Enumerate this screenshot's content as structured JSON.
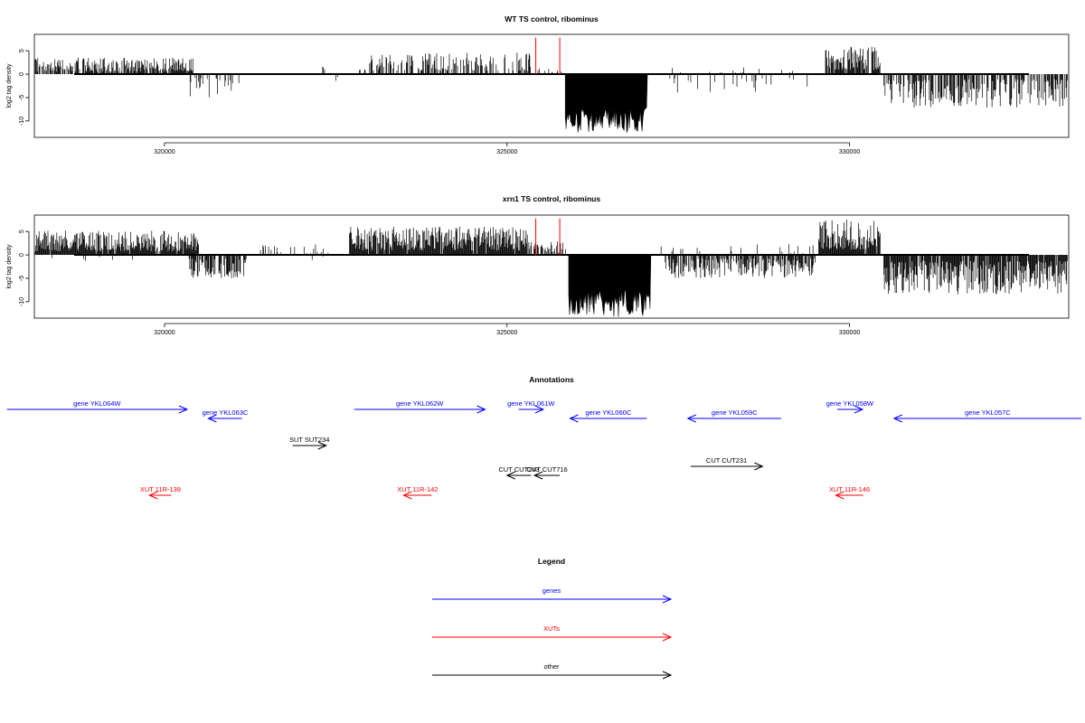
{
  "chart_data": [
    {
      "type": "bar",
      "title": "WT TS control, ribominus",
      "ylabel": "log2 tag density",
      "xlabel": "",
      "xlim": [
        318100,
        333200
      ],
      "ylim": [
        -13.5,
        8.5
      ],
      "yticks": [
        5,
        0,
        -5,
        -10
      ],
      "xticks": [
        320000,
        325000,
        330000
      ],
      "grid": false,
      "series": [
        {
          "strand": "plus",
          "segments": [
            {
              "x": [
                318100,
                320420
              ],
              "max": 3.5,
              "density": 0.75
            },
            {
              "x": [
                322300,
                322350
              ],
              "max": 1.6,
              "density": 0.5
            },
            {
              "x": [
                322800,
                325350
              ],
              "max": 4.6,
              "density": 0.45
            },
            {
              "x": [
                325350,
                325850
              ],
              "max": 1.2,
              "density": 0.2
            },
            {
              "x": [
                327200,
                329600
              ],
              "max": 1.5,
              "density": 0.06
            },
            {
              "x": [
                329650,
                330450
              ],
              "max": 6.0,
              "density": 0.85
            }
          ]
        },
        {
          "strand": "minus",
          "segments": [
            {
              "x": [
                320300,
                321100
              ],
              "max": 5.2,
              "density": 0.3
            },
            {
              "x": [
                322500,
                322550
              ],
              "max": 2.0,
              "density": 0.3
            },
            {
              "x": [
                325850,
                327050
              ],
              "max": 12.8,
              "density": 1.0
            },
            {
              "x": [
                327100,
                329500
              ],
              "max": 4.6,
              "density": 0.1
            },
            {
              "x": [
                330500,
                333200
              ],
              "max": 7.2,
              "density": 0.55
            }
          ]
        }
      ],
      "highlights": [
        {
          "x": 325420,
          "value": 7.8,
          "color": "#ff0000"
        },
        {
          "x": 325770,
          "value": 7.8,
          "color": "#ff0000"
        }
      ]
    },
    {
      "type": "bar",
      "title": "xrn1 TS control, ribominus",
      "ylabel": "log2 tag density",
      "xlabel": "",
      "xlim": [
        318100,
        333200
      ],
      "ylim": [
        -13.5,
        8.5
      ],
      "yticks": [
        5,
        0,
        -5,
        -10
      ],
      "xticks": [
        320000,
        325000,
        330000
      ],
      "grid": false,
      "series": [
        {
          "strand": "plus",
          "segments": [
            {
              "x": [
                318100,
                320500
              ],
              "max": 5.2,
              "density": 0.95
            },
            {
              "x": [
                321400,
                322400
              ],
              "max": 2.3,
              "density": 0.2
            },
            {
              "x": [
                322700,
                325300
              ],
              "max": 6.1,
              "density": 0.95
            },
            {
              "x": [
                325300,
                325900
              ],
              "max": 3.0,
              "density": 0.4
            },
            {
              "x": [
                327000,
                329500
              ],
              "max": 2.3,
              "density": 0.1
            },
            {
              "x": [
                329550,
                330450
              ],
              "max": 7.6,
              "density": 0.95
            }
          ]
        },
        {
          "strand": "minus",
          "segments": [
            {
              "x": [
                318200,
                320300
              ],
              "max": 1.3,
              "density": 0.04
            },
            {
              "x": [
                320350,
                321200
              ],
              "max": 5.0,
              "density": 0.7
            },
            {
              "x": [
                322100,
                322700
              ],
              "max": 1.2,
              "density": 0.1
            },
            {
              "x": [
                325900,
                327100
              ],
              "max": 13.2,
              "density": 1.0
            },
            {
              "x": [
                327300,
                329500
              ],
              "max": 5.0,
              "density": 0.75
            },
            {
              "x": [
                330500,
                333200
              ],
              "max": 8.5,
              "density": 0.9
            }
          ]
        }
      ],
      "highlights": [
        {
          "x": 325420,
          "value": 7.8,
          "color": "#ff0000"
        },
        {
          "x": 325770,
          "value": 7.8,
          "color": "#ff0000"
        }
      ]
    }
  ],
  "annotations": {
    "title": "Annotations",
    "features": [
      {
        "label": "gene YKL064W",
        "kind": "gene",
        "strand": "+",
        "start": 317700,
        "end": 320330,
        "row": 0
      },
      {
        "label": "gene YKL063C",
        "kind": "gene",
        "strand": "-",
        "start": 320640,
        "end": 321130,
        "row": 1
      },
      {
        "label": "gene YKL062W",
        "kind": "gene",
        "strand": "+",
        "start": 322770,
        "end": 324680,
        "row": 0
      },
      {
        "label": "gene YKL061W",
        "kind": "gene",
        "strand": "+",
        "start": 325170,
        "end": 325530,
        "row": 0
      },
      {
        "label": "gene YKL060C",
        "kind": "gene",
        "strand": "-",
        "start": 325920,
        "end": 327040,
        "row": 1
      },
      {
        "label": "gene YKL059C",
        "kind": "gene",
        "strand": "-",
        "start": 327640,
        "end": 329000,
        "row": 1
      },
      {
        "label": "gene YKL058W",
        "kind": "gene",
        "strand": "+",
        "start": 329820,
        "end": 330190,
        "row": 0
      },
      {
        "label": "gene YKL057C",
        "kind": "gene",
        "strand": "-",
        "start": 330650,
        "end": 333970,
        "row": 1
      },
      {
        "label": "SUT SUT234",
        "kind": "other",
        "strand": "+",
        "start": 321870,
        "end": 322360,
        "row": 2
      },
      {
        "label": "CUT CUT231",
        "kind": "other",
        "strand": "+",
        "start": 327680,
        "end": 328730,
        "row": 3
      },
      {
        "label": "CUT CUT243",
        "kind": "other",
        "strand": "-",
        "start": 325000,
        "end": 325350,
        "row": 4
      },
      {
        "label": "CUT CUT716",
        "kind": "other",
        "strand": "-",
        "start": 325400,
        "end": 325770,
        "row": 4
      },
      {
        "label": "XUT 11R-139",
        "kind": "xut",
        "strand": "-",
        "start": 319780,
        "end": 320100,
        "row": 5
      },
      {
        "label": "XUT 11R-142",
        "kind": "xut",
        "strand": "-",
        "start": 323490,
        "end": 323900,
        "row": 5
      },
      {
        "label": "XUT 11R-146",
        "kind": "xut",
        "strand": "-",
        "start": 329800,
        "end": 330200,
        "row": 5
      }
    ]
  },
  "legend": {
    "title": "Legend",
    "items": [
      {
        "label": "genes",
        "kind": "gene"
      },
      {
        "label": "XUTs",
        "kind": "xut"
      },
      {
        "label": "other",
        "kind": "other"
      }
    ]
  },
  "colors": {
    "gene": "#0000ff",
    "xut": "#ff0000",
    "other": "#000000",
    "signal": "#000000",
    "highlight": "#ff0000"
  }
}
